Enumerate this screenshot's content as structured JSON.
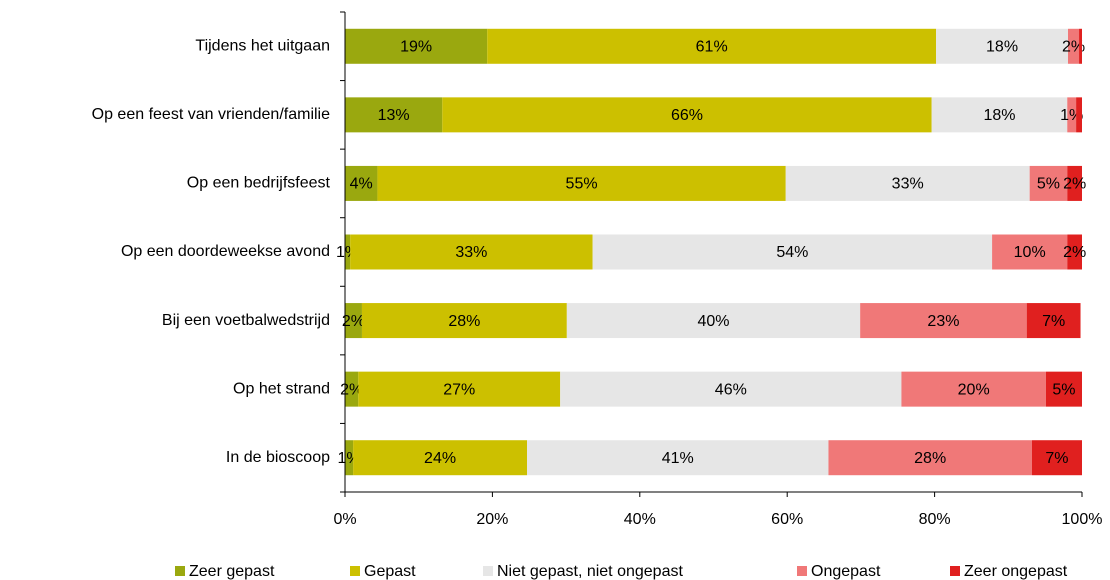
{
  "chart_data": {
    "type": "stacked-barh",
    "categories": [
      "Tijdens het uitgaan",
      "Op een feest van vrienden/familie",
      "Op een bedrijfsfeest",
      "Op een doordeweekse avond",
      "Bij een voetbalwedstrijd",
      "Op het strand",
      "In de bioscoop"
    ],
    "series": [
      {
        "name": "Zeer gepast",
        "color": "#9aa80f",
        "values": [
          19.3,
          13.2,
          4.4,
          0.7,
          2.3,
          1.8,
          1.1
        ],
        "value_labels": [
          "19%",
          "13%",
          "4%",
          "1%",
          "2%",
          "2%",
          "1%"
        ]
      },
      {
        "name": "Gepast",
        "color": "#ccc000",
        "values": [
          60.9,
          66.4,
          55.4,
          32.9,
          27.8,
          27.4,
          23.6
        ],
        "value_labels": [
          "61%",
          "66%",
          "55%",
          "33%",
          "28%",
          "27%",
          "24%"
        ]
      },
      {
        "name": "Niet gepast, niet ongepast",
        "color": "#e6e6e6",
        "values": [
          17.9,
          18.4,
          33.1,
          54.2,
          39.8,
          46.3,
          40.9
        ],
        "value_labels": [
          "18%",
          "18%",
          "33%",
          "54%",
          "40%",
          "46%",
          "41%"
        ]
      },
      {
        "name": "Ongepast",
        "color": "#f07878",
        "values": [
          1.5,
          1.2,
          5.1,
          10.2,
          22.6,
          19.6,
          27.6
        ],
        "value_labels": [
          "2%",
          "1%",
          "5%",
          "10%",
          "23%",
          "20%",
          "28%"
        ]
      },
      {
        "name": "Zeer ongepast",
        "color": "#e0201f",
        "values": [
          0.4,
          0.8,
          2.0,
          2.0,
          7.3,
          4.9,
          6.8
        ],
        "value_labels": [
          null,
          null,
          "2%",
          "2%",
          "7%",
          "5%",
          "7%"
        ]
      }
    ],
    "xlim": [
      0,
      100
    ],
    "xticks": [
      {
        "value": 0,
        "label": "0%"
      },
      {
        "value": 20,
        "label": "20%"
      },
      {
        "value": 40,
        "label": "40%"
      },
      {
        "value": 60,
        "label": "60%"
      },
      {
        "value": 80,
        "label": "80%"
      },
      {
        "value": 100,
        "label": "100%"
      }
    ],
    "legend": "bottom"
  }
}
